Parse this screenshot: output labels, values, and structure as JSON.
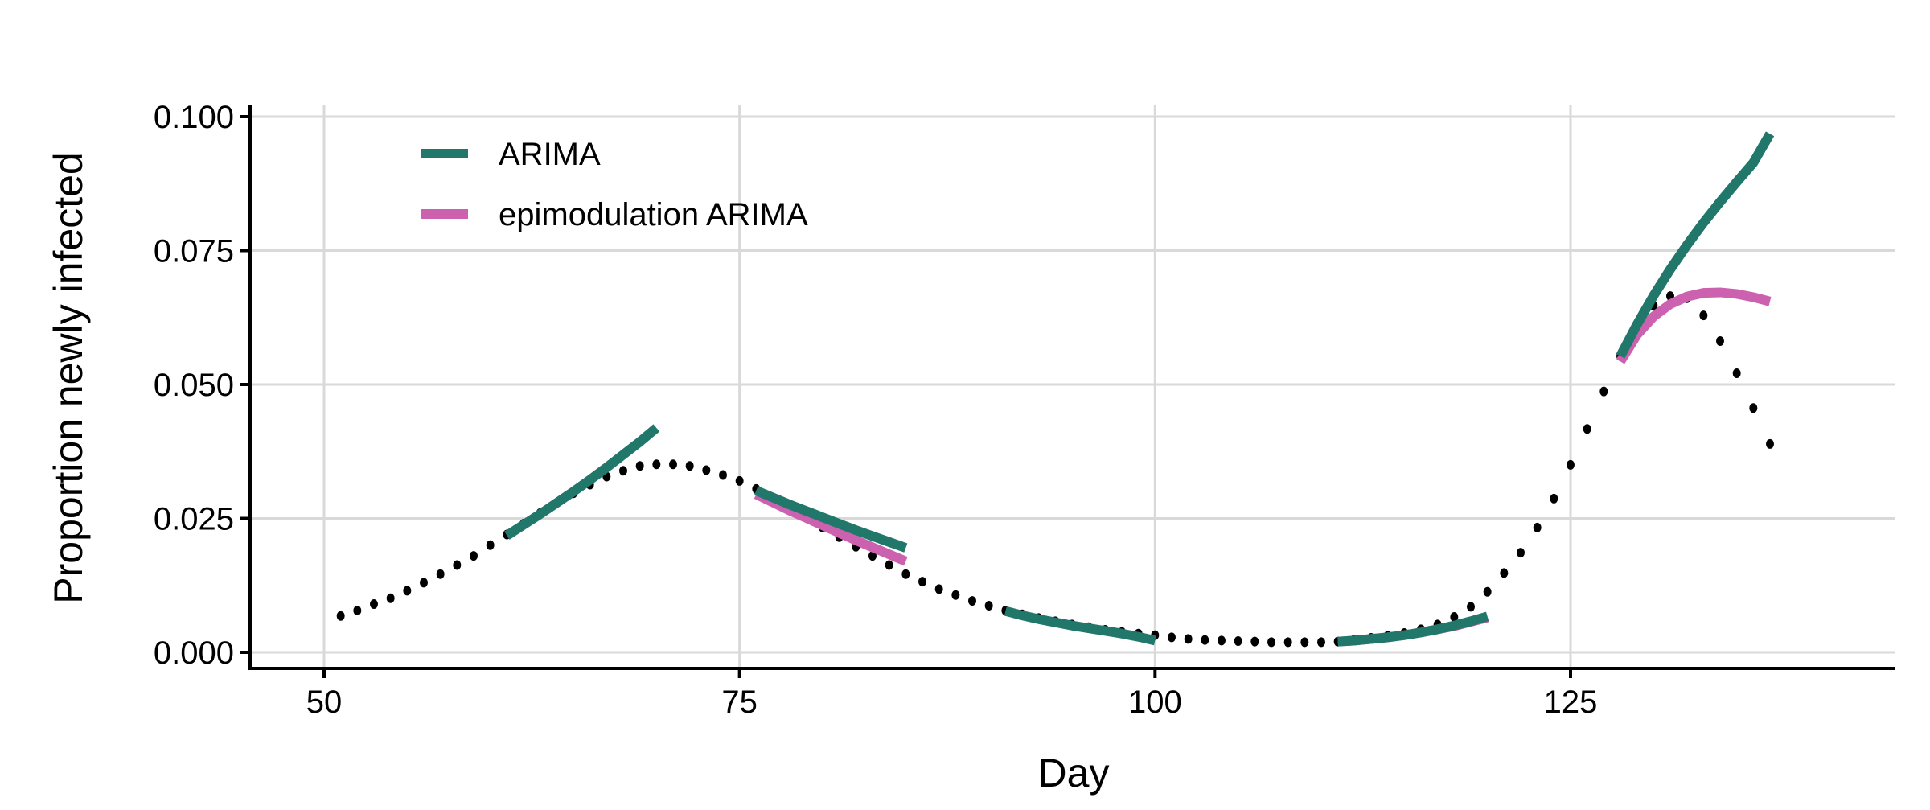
{
  "chart_data": {
    "type": "line",
    "title": "",
    "xlabel": "Day",
    "ylabel": "Proportion newly infected",
    "xlim": [
      45.5,
      144
    ],
    "ylim": [
      -0.0025,
      0.102
    ],
    "x_ticks": [
      50,
      75,
      100,
      125
    ],
    "x_tick_labels": [
      "50",
      "75",
      "100",
      "125"
    ],
    "y_ticks": [
      0,
      0.025,
      0.05,
      0.075,
      0.1
    ],
    "y_tick_labels": [
      "0.000",
      "0.025",
      "0.050",
      "0.075",
      "0.100"
    ],
    "grid": true,
    "legend_placement": "top-left",
    "observed": {
      "marker": "dot",
      "color": "#000000",
      "x": [
        51,
        52,
        53,
        54,
        55,
        56,
        57,
        58,
        59,
        60,
        61,
        62,
        63,
        64,
        65,
        66,
        67,
        68,
        69,
        70,
        71,
        72,
        73,
        74,
        75,
        76,
        77,
        78,
        79,
        80,
        81,
        82,
        83,
        84,
        85,
        86,
        87,
        88,
        89,
        90,
        91,
        92,
        93,
        94,
        95,
        96,
        97,
        98,
        99,
        100,
        101,
        102,
        103,
        104,
        105,
        106,
        107,
        108,
        109,
        110,
        111,
        112,
        113,
        114,
        115,
        116,
        117,
        118,
        119,
        120,
        121,
        122,
        123,
        124,
        125,
        126,
        127,
        128,
        129,
        130,
        131,
        132,
        133,
        134,
        135,
        136,
        137
      ],
      "y": [
        0.0068,
        0.0078,
        0.009,
        0.0101,
        0.0115,
        0.013,
        0.0146,
        0.0163,
        0.018,
        0.02,
        0.022,
        0.024,
        0.026,
        0.0279,
        0.0297,
        0.0313,
        0.0328,
        0.0339,
        0.0348,
        0.0351,
        0.0351,
        0.0348,
        0.034,
        0.0331,
        0.032,
        0.0305,
        0.0288,
        0.027,
        0.0252,
        0.0233,
        0.0215,
        0.0197,
        0.018,
        0.0163,
        0.0146,
        0.0132,
        0.0118,
        0.0107,
        0.0096,
        0.0087,
        0.0078,
        0.0071,
        0.0064,
        0.0058,
        0.0052,
        0.0047,
        0.0042,
        0.0038,
        0.0035,
        0.0032,
        0.0028,
        0.0025,
        0.0023,
        0.0022,
        0.0021,
        0.002,
        0.0019,
        0.0019,
        0.0019,
        0.0019,
        0.002,
        0.0024,
        0.0027,
        0.0031,
        0.0036,
        0.0043,
        0.0052,
        0.0066,
        0.0085,
        0.0113,
        0.0148,
        0.0186,
        0.0233,
        0.0287,
        0.035,
        0.0417,
        0.0487,
        0.0553,
        0.0607,
        0.0647,
        0.0665,
        0.0661,
        0.0629,
        0.0581,
        0.0521,
        0.0456,
        0.0389
      ]
    },
    "series": [
      {
        "name": "ARIMA",
        "color": "#21786A",
        "segments": [
          {
            "x": [
              61,
              62,
              63,
              64,
              65,
              66,
              67,
              68,
              69,
              70
            ],
            "y": [
              0.0218,
              0.0238,
              0.0258,
              0.0279,
              0.03,
              0.0322,
              0.0345,
              0.0369,
              0.0393,
              0.0419
            ]
          },
          {
            "x": [
              76,
              77,
              78,
              79,
              80,
              81,
              82,
              83,
              84,
              85
            ],
            "y": [
              0.0302,
              0.0289,
              0.0276,
              0.0264,
              0.0252,
              0.024,
              0.0228,
              0.0217,
              0.0206,
              0.0195
            ]
          },
          {
            "x": [
              91,
              92,
              93,
              94,
              95,
              96,
              97,
              98,
              99,
              100
            ],
            "y": [
              0.0077,
              0.0069,
              0.0062,
              0.0056,
              0.005,
              0.0045,
              0.004,
              0.0035,
              0.0029,
              0.0022
            ]
          },
          {
            "x": [
              111,
              112,
              113,
              114,
              115,
              116,
              117,
              118,
              119,
              120
            ],
            "y": [
              0.002,
              0.0022,
              0.0025,
              0.0028,
              0.0032,
              0.0037,
              0.0043,
              0.005,
              0.0058,
              0.0067
            ]
          },
          {
            "x": [
              128,
              129,
              130,
              131,
              132,
              133,
              134,
              135,
              136,
              137
            ],
            "y": [
              0.0553,
              0.0612,
              0.0666,
              0.0715,
              0.076,
              0.0802,
              0.0841,
              0.0878,
              0.0914,
              0.0968
            ]
          }
        ]
      },
      {
        "name": "epimodulation ARIMA",
        "color": "#CC61B0",
        "segments": [
          {
            "x": [
              76,
              77,
              78,
              79,
              80,
              81,
              82,
              83,
              84,
              85
            ],
            "y": [
              0.0295,
              0.028,
              0.0265,
              0.0251,
              0.0237,
              0.0223,
              0.0209,
              0.0196,
              0.0183,
              0.017
            ]
          },
          {
            "x": [
              111,
              112,
              113,
              114,
              115,
              116,
              117,
              118,
              119,
              120
            ],
            "y": [
              0.002,
              0.0022,
              0.0025,
              0.0028,
              0.0032,
              0.0037,
              0.0043,
              0.0049,
              0.0057,
              0.0065
            ]
          },
          {
            "x": [
              128,
              129,
              130,
              131,
              132,
              133,
              134,
              135,
              136,
              137
            ],
            "y": [
              0.0543,
              0.0593,
              0.0627,
              0.065,
              0.0664,
              0.0671,
              0.0672,
              0.0669,
              0.0663,
              0.0655
            ]
          }
        ]
      }
    ]
  }
}
